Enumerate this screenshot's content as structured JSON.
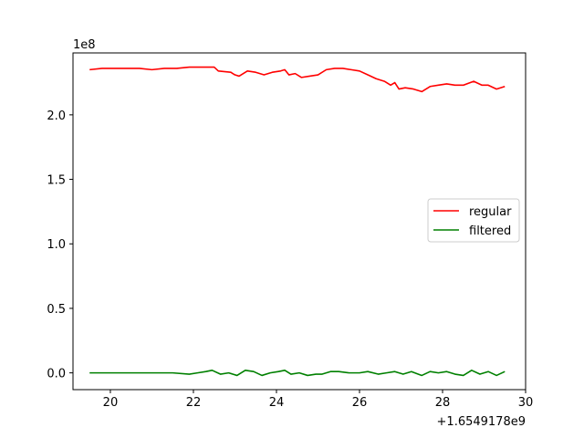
{
  "chart_data": {
    "type": "line",
    "x_offset_label": "+1.6549178e9",
    "y_scale_label": "1e8",
    "xlim": [
      19.1,
      30.0
    ],
    "ylim": [
      -0.13,
      2.48
    ],
    "x_ticks": [
      20,
      22,
      24,
      26,
      28,
      30
    ],
    "x_tick_labels": [
      "20",
      "22",
      "24",
      "26",
      "28",
      "30"
    ],
    "y_ticks": [
      0.0,
      0.5,
      1.0,
      1.5,
      2.0
    ],
    "y_tick_labels": [
      "0.0",
      "0.5",
      "1.0",
      "1.5",
      "2.0"
    ],
    "grid": false,
    "legend_position": "center-right",
    "series": [
      {
        "name": "regular",
        "color": "#ff0000",
        "x": [
          19.5,
          19.8,
          20.1,
          20.4,
          20.7,
          21.0,
          21.3,
          21.6,
          21.9,
          22.2,
          22.5,
          22.6,
          22.9,
          23.0,
          23.1,
          23.3,
          23.5,
          23.7,
          23.9,
          24.1,
          24.2,
          24.3,
          24.45,
          24.6,
          24.8,
          25.0,
          25.2,
          25.4,
          25.6,
          25.8,
          26.0,
          26.2,
          26.4,
          26.6,
          26.75,
          26.85,
          26.95,
          27.1,
          27.3,
          27.5,
          27.7,
          27.9,
          28.1,
          28.3,
          28.5,
          28.75,
          28.95,
          29.1,
          29.3,
          29.5
        ],
        "y": [
          2.35,
          2.36,
          2.36,
          2.36,
          2.36,
          2.35,
          2.36,
          2.36,
          2.37,
          2.37,
          2.37,
          2.34,
          2.33,
          2.31,
          2.3,
          2.34,
          2.33,
          2.31,
          2.33,
          2.34,
          2.35,
          2.31,
          2.32,
          2.29,
          2.3,
          2.31,
          2.35,
          2.36,
          2.36,
          2.35,
          2.34,
          2.31,
          2.28,
          2.26,
          2.23,
          2.25,
          2.2,
          2.21,
          2.2,
          2.18,
          2.22,
          2.23,
          2.24,
          2.23,
          2.23,
          2.26,
          2.23,
          2.23,
          2.2,
          2.22
        ]
      },
      {
        "name": "filtered",
        "color": "#008000",
        "x": [
          19.5,
          19.9,
          20.3,
          20.7,
          21.1,
          21.5,
          21.9,
          22.1,
          22.3,
          22.45,
          22.65,
          22.85,
          23.05,
          23.25,
          23.45,
          23.65,
          23.85,
          24.05,
          24.2,
          24.35,
          24.55,
          24.75,
          24.95,
          25.1,
          25.3,
          25.5,
          25.75,
          26.0,
          26.2,
          26.45,
          26.65,
          26.85,
          27.05,
          27.25,
          27.5,
          27.7,
          27.9,
          28.1,
          28.3,
          28.5,
          28.7,
          28.9,
          29.1,
          29.3,
          29.5
        ],
        "y": [
          0.0,
          0.0,
          0.0,
          0.0,
          0.0,
          0.0,
          -0.01,
          0.0,
          0.01,
          0.02,
          -0.01,
          0.0,
          -0.02,
          0.02,
          0.01,
          -0.02,
          0.0,
          0.01,
          0.02,
          -0.01,
          0.0,
          -0.02,
          -0.01,
          -0.01,
          0.01,
          0.01,
          0.0,
          0.0,
          0.01,
          -0.01,
          0.0,
          0.01,
          -0.01,
          0.01,
          -0.02,
          0.01,
          0.0,
          0.01,
          -0.01,
          -0.02,
          0.02,
          -0.01,
          0.01,
          -0.02,
          0.01
        ]
      }
    ]
  }
}
